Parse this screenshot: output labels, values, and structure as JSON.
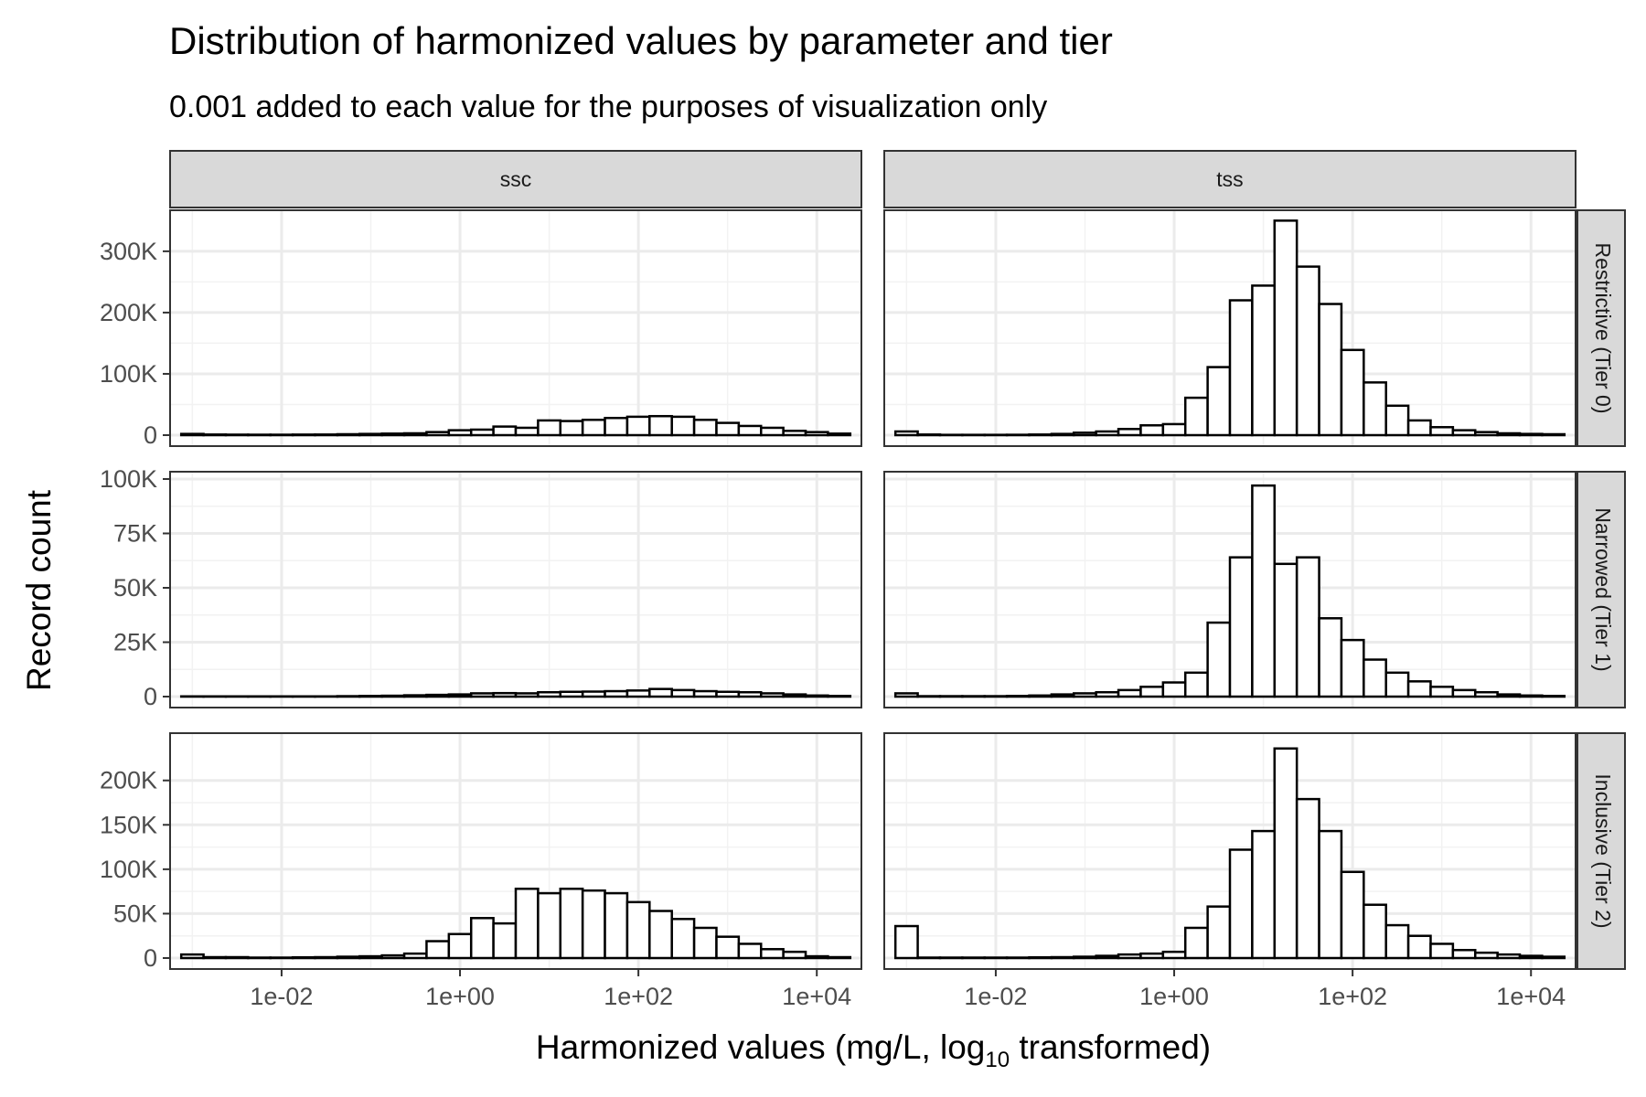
{
  "chart_data": {
    "type": "bar",
    "title": "Distribution of harmonized values by parameter and tier",
    "subtitle": "0.001 added to each value for the purposes of visualization only",
    "xlabel": "Harmonized values (mg/L,  log",
    "xlabel_subscript": "10",
    "xlabel_suffix": "  transformed)",
    "ylabel": "Record count",
    "x_scale": "log10",
    "x_ticks": [
      0.01,
      1,
      100,
      10000
    ],
    "x_tick_labels": [
      "1e-02",
      "1e+00",
      "1e+02",
      "1e+04"
    ],
    "bin_log10_centers": [
      -3.0,
      -2.75,
      -2.5,
      -2.25,
      -2.0,
      -1.75,
      -1.5,
      -1.25,
      -1.0,
      -0.75,
      -0.5,
      -0.25,
      0.0,
      0.25,
      0.5,
      0.75,
      1.0,
      1.25,
      1.5,
      1.75,
      2.0,
      2.25,
      2.5,
      2.75,
      3.0,
      3.25,
      3.5,
      3.75,
      4.0,
      4.25
    ],
    "columns": [
      "ssc",
      "tss"
    ],
    "rows": [
      "Restrictive (Tier 0)",
      "Narrowed (Tier 1)",
      "Inclusive (Tier 2)"
    ],
    "y_axes": [
      {
        "ylim": [
          0,
          355000
        ],
        "ticks": [
          0,
          100000,
          200000,
          300000
        ],
        "tick_labels": [
          "0",
          "100K",
          "200K",
          "300K"
        ]
      },
      {
        "ylim": [
          0,
          100000
        ],
        "ticks": [
          0,
          25000,
          50000,
          75000,
          100000
        ],
        "tick_labels": [
          "0",
          "25K",
          "50K",
          "75K",
          "100K"
        ]
      },
      {
        "ylim": [
          0,
          245000
        ],
        "ticks": [
          0,
          50000,
          100000,
          150000,
          200000
        ],
        "tick_labels": [
          "0",
          "50K",
          "100K",
          "150K",
          "200K"
        ]
      }
    ],
    "grid": true,
    "bar_fill": "#ffffff",
    "bar_outline": "#000000",
    "strip_fill": "#d9d9d9",
    "panels": [
      {
        "column": "ssc",
        "row": "Restrictive (Tier 0)",
        "values": [
          2000,
          1000,
          800,
          700,
          700,
          900,
          1000,
          1500,
          2000,
          2500,
          3000,
          5000,
          8000,
          9000,
          14000,
          12000,
          24000,
          23000,
          25000,
          28000,
          30000,
          31000,
          30000,
          25000,
          20000,
          15000,
          12000,
          7000,
          5000,
          2500
        ]
      },
      {
        "column": "tss",
        "row": "Restrictive (Tier 0)",
        "values": [
          6000,
          1000,
          500,
          500,
          500,
          600,
          1000,
          2000,
          4000,
          6000,
          10000,
          16000,
          18000,
          61000,
          111000,
          220000,
          244000,
          350000,
          275000,
          214000,
          139000,
          86000,
          48000,
          24000,
          13000,
          8000,
          5000,
          3000,
          2000,
          1500
        ]
      },
      {
        "column": "ssc",
        "row": "Narrowed (Tier 1)",
        "values": [
          100,
          100,
          100,
          100,
          100,
          100,
          100,
          200,
          300,
          400,
          600,
          800,
          1000,
          1500,
          1600,
          1500,
          2000,
          2200,
          2300,
          2500,
          2800,
          3500,
          3000,
          2500,
          2200,
          2000,
          1500,
          1000,
          500,
          300
        ]
      },
      {
        "column": "tss",
        "row": "Narrowed (Tier 1)",
        "values": [
          1500,
          200,
          200,
          200,
          200,
          300,
          500,
          1000,
          1500,
          2000,
          3000,
          4500,
          6500,
          11000,
          34000,
          64000,
          97000,
          61000,
          64000,
          36000,
          26000,
          17000,
          11000,
          7000,
          4500,
          3000,
          2000,
          1000,
          500,
          300
        ]
      },
      {
        "column": "ssc",
        "row": "Inclusive (Tier 2)",
        "values": [
          4000,
          1000,
          1000,
          500,
          500,
          800,
          1000,
          1500,
          2000,
          3000,
          5000,
          19000,
          27000,
          45000,
          39000,
          78000,
          73000,
          78000,
          76000,
          73000,
          63000,
          53000,
          44000,
          34000,
          24000,
          16000,
          10000,
          7000,
          2000,
          1000
        ]
      },
      {
        "column": "tss",
        "row": "Inclusive (Tier 2)",
        "values": [
          36000,
          500,
          500,
          500,
          500,
          500,
          800,
          1000,
          1500,
          2500,
          4000,
          5000,
          7000,
          34000,
          58000,
          122000,
          143000,
          236000,
          179000,
          143000,
          97000,
          60000,
          37000,
          25000,
          16000,
          9000,
          6000,
          4000,
          2500,
          1500
        ]
      }
    ]
  }
}
